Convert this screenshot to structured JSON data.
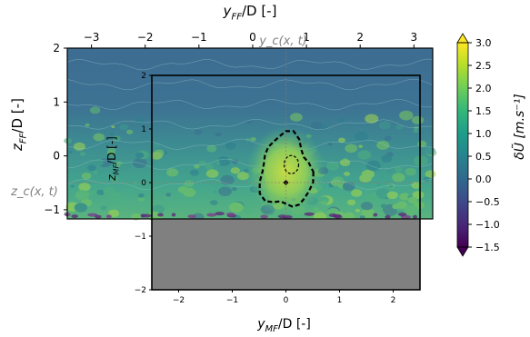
{
  "chart_data": {
    "type": "heatmap",
    "far_field": {
      "x_label": "y_FF/D [-]",
      "y_label": "z_FF/D [-]",
      "x_ticks": [
        -3,
        -2,
        -1,
        0,
        1,
        2,
        3
      ],
      "y_ticks": [
        -1,
        0,
        1,
        2
      ],
      "xlim": [
        -3.45,
        3.35
      ],
      "ylim": [
        -1.17,
        2.0
      ],
      "x_tick_labels": [
        "−3",
        "−2",
        "−1",
        "0",
        "1",
        "2",
        "3"
      ],
      "y_tick_labels": [
        "−1",
        "0",
        "1",
        "2"
      ]
    },
    "mid_field": {
      "x_label": "y_MF/D [-]",
      "y_label": "z_MF/D [-]",
      "x_ticks": [
        -2,
        -1,
        0,
        1,
        2
      ],
      "y_ticks": [
        -2,
        -1,
        0,
        1,
        2
      ],
      "xlim": [
        -2.5,
        2.5
      ],
      "ylim": [
        -2.0,
        2.0
      ],
      "x_tick_labels": [
        "−2",
        "−1",
        "0",
        "1",
        "2"
      ],
      "y_tick_labels": [
        "−2",
        "−1",
        "0",
        "1",
        "2"
      ]
    },
    "annotations": {
      "y_center": "y_c(x, t)",
      "z_center": "z_c(x, t)"
    },
    "colorbar": {
      "label": "δŨ [m.s⁻¹]",
      "ticks": [
        3.0,
        2.5,
        2.0,
        1.5,
        1.0,
        0.5,
        0.0,
        -0.5,
        -1.0,
        -1.5
      ],
      "tick_labels": [
        "3.0",
        "2.5",
        "2.0",
        "1.5",
        "1.0",
        "0.5",
        "0.0",
        "−0.5",
        "−1.0",
        "−1.5"
      ],
      "range": [
        -1.5,
        3.0
      ],
      "colormap": "viridis",
      "extend": "both"
    },
    "colors": {
      "masked_region": "#808080",
      "wake_contour": "#000000",
      "annotation": "#808080"
    }
  }
}
